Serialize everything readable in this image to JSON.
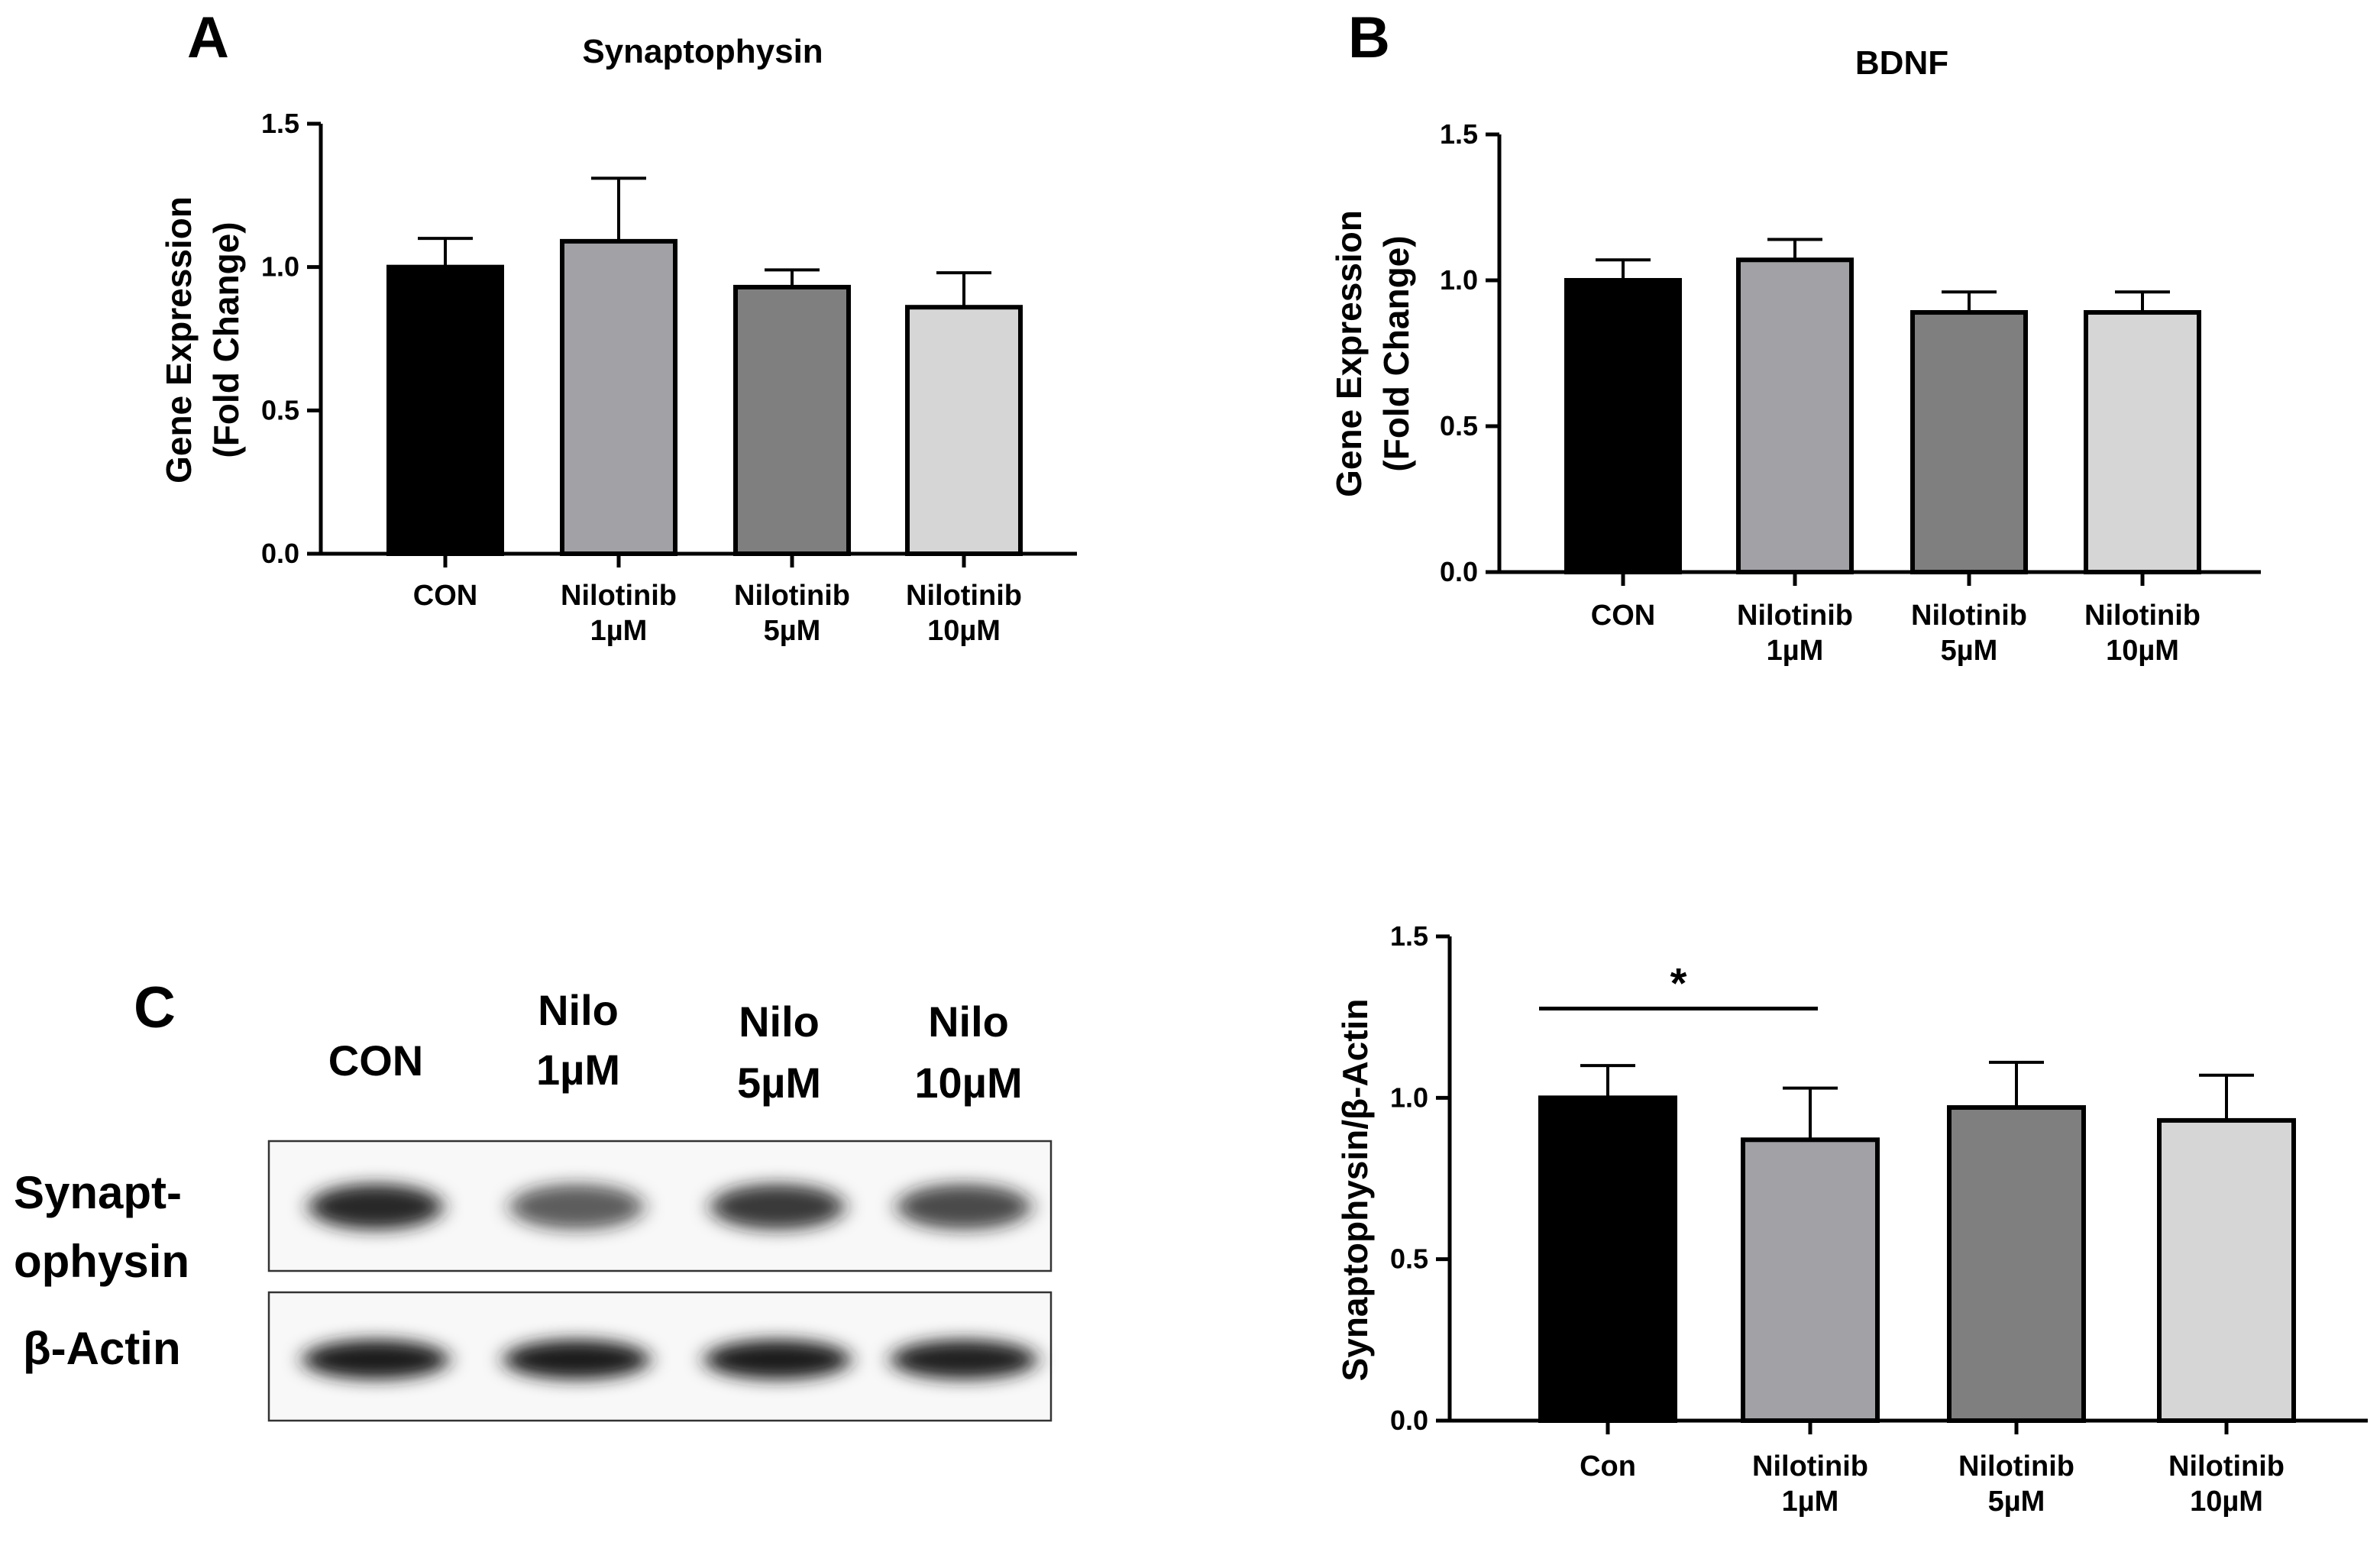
{
  "panels": {
    "a": "A",
    "b": "B",
    "c": "C"
  },
  "colors": {
    "bars": [
      "#000000",
      "#a2a1a6",
      "#7f7f7f",
      "#d6d6d6"
    ],
    "axis": "#000000",
    "blot_band": "#1a1a1a"
  },
  "blot": {
    "lanes": [
      {
        "line1": "CON",
        "line2": ""
      },
      {
        "line1": "Nilo",
        "line2": "1µM"
      },
      {
        "line1": "Nilo",
        "line2": "5µM"
      },
      {
        "line1": "Nilo",
        "line2": "10µM"
      }
    ],
    "rows": [
      {
        "line1": "Synapt-",
        "line2": "ophysin",
        "band_intensity": [
          0.95,
          0.7,
          0.85,
          0.78
        ]
      },
      {
        "line1": "β-Actin",
        "line2": "",
        "band_intensity": [
          1.0,
          1.0,
          1.0,
          0.98
        ]
      }
    ]
  },
  "chart_data": [
    {
      "id": "A",
      "type": "bar",
      "title": "Synaptophysin",
      "ylabel_line1": "Gene Expression",
      "ylabel_line2": "(Fold Change)",
      "ylim": [
        0,
        1.5
      ],
      "yticks": [
        "0.0",
        "0.5",
        "1.0",
        "1.5"
      ],
      "categories": [
        {
          "line1": "CON",
          "line2": ""
        },
        {
          "line1": "Nilotinib",
          "line2": "1µM"
        },
        {
          "line1": "Nilotinib",
          "line2": "5µM"
        },
        {
          "line1": "Nilotinib",
          "line2": "10µM"
        }
      ],
      "values": [
        1.0,
        1.09,
        0.93,
        0.86
      ],
      "errors": [
        0.1,
        0.22,
        0.06,
        0.12
      ],
      "significance": []
    },
    {
      "id": "B",
      "type": "bar",
      "title": "BDNF",
      "ylabel_line1": "Gene Expression",
      "ylabel_line2": "(Fold Change)",
      "ylim": [
        0,
        1.5
      ],
      "yticks": [
        "0.0",
        "0.5",
        "1.0",
        "1.5"
      ],
      "categories": [
        {
          "line1": "CON",
          "line2": ""
        },
        {
          "line1": "Nilotinib",
          "line2": "1µM"
        },
        {
          "line1": "Nilotinib",
          "line2": "5µM"
        },
        {
          "line1": "Nilotinib",
          "line2": "10µM"
        }
      ],
      "values": [
        1.0,
        1.07,
        0.89,
        0.89
      ],
      "errors": [
        0.07,
        0.07,
        0.07,
        0.07
      ],
      "significance": []
    },
    {
      "id": "C",
      "type": "bar",
      "title": "",
      "ylabel_line1": "Synaptophysin/β-Actin",
      "ylabel_line2": "",
      "ylim": [
        0,
        1.5
      ],
      "yticks": [
        "0.0",
        "0.5",
        "1.0",
        "1.5"
      ],
      "categories": [
        {
          "line1": "Con",
          "line2": ""
        },
        {
          "line1": "Nilotinib",
          "line2": "1µM"
        },
        {
          "line1": "Nilotinib",
          "line2": "5µM"
        },
        {
          "line1": "Nilotinib",
          "line2": "10µM"
        }
      ],
      "values": [
        1.0,
        0.87,
        0.97,
        0.93
      ],
      "errors": [
        0.1,
        0.16,
        0.14,
        0.14
      ],
      "significance": [
        {
          "from": 0,
          "to": 1,
          "label": "*"
        }
      ]
    }
  ]
}
